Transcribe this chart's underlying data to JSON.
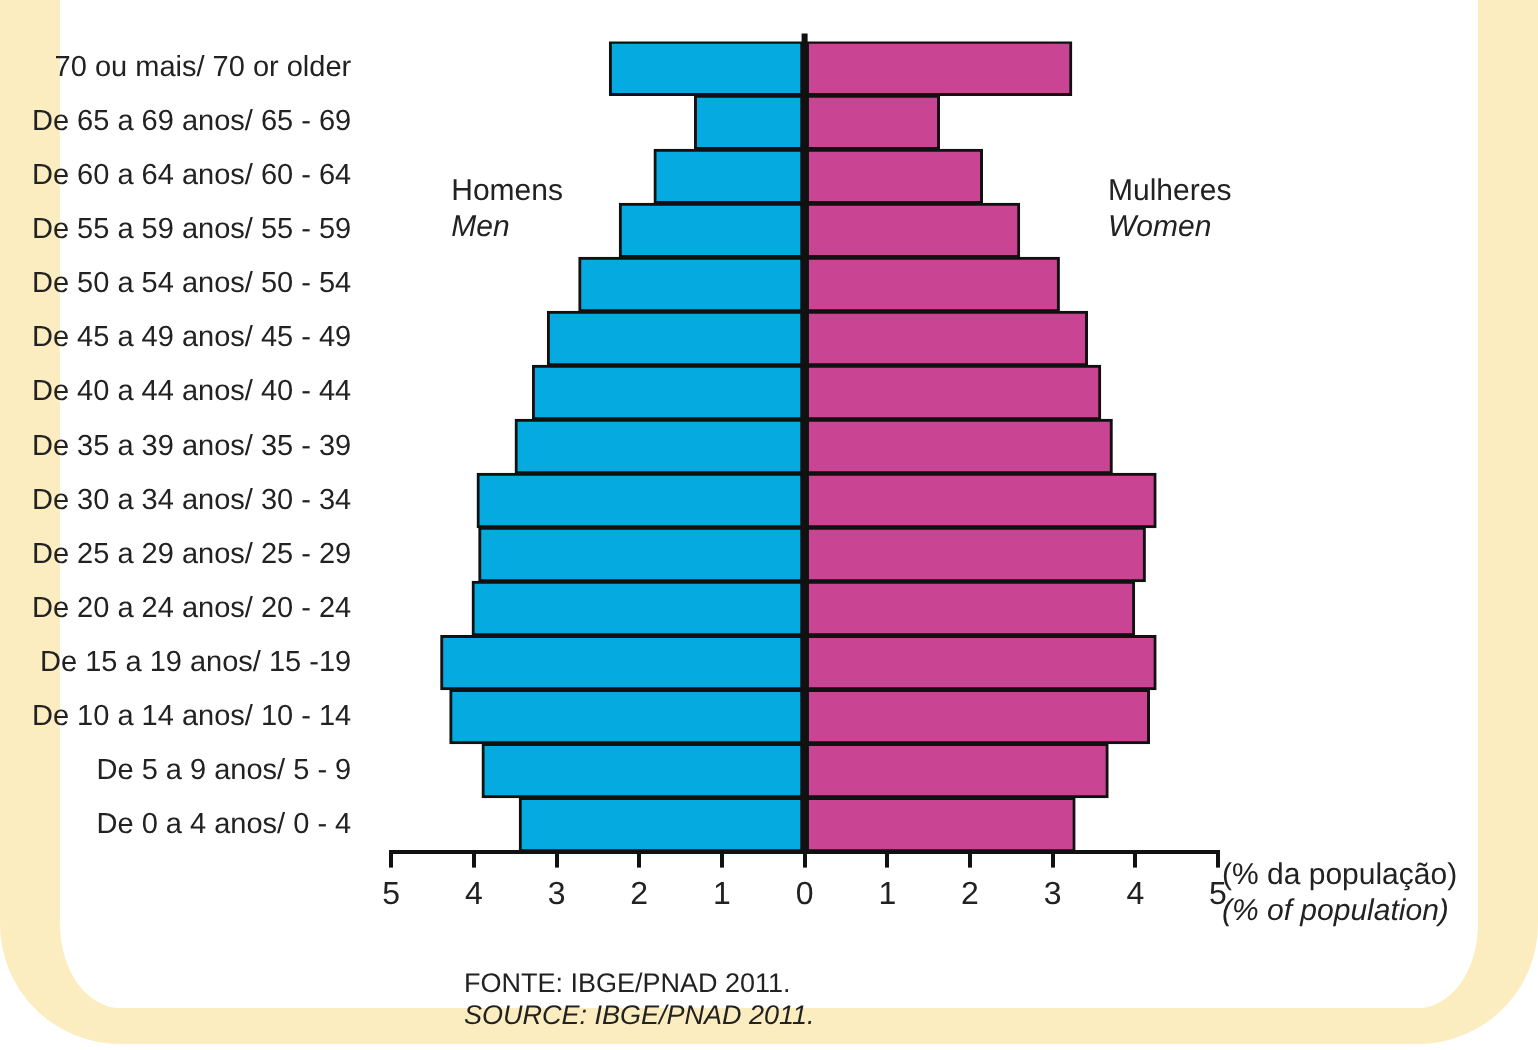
{
  "chart_data": {
    "type": "bar",
    "orientation": "horizontal",
    "stacked": true,
    "categories": [
      "70 ou mais/ 70 or older",
      "De 65 a 69 anos/ 65 - 69",
      "De 60 a 64 anos/ 60 - 64",
      "De 55 a 59 anos/ 55 - 59",
      "De 50 a 54 anos/ 50 - 54",
      "De 45 a 49 anos/ 45 - 49",
      "De 40 a 44 anos/ 40 - 44",
      "De 35 a 39 anos/ 35 - 39",
      "De 30 a 34 anos/ 30 - 34",
      "De 25 a 29 anos/ 25 - 29",
      "De 20 a 24 anos/ 20 - 24",
      "De 15 a 19 anos/ 15 -19",
      "De 10 a 14 anos/ 10 - 14",
      "De 5 a 9 anos/ 5 - 9",
      "De 0 a 4 anos/ 0 - 4"
    ],
    "series": [
      {
        "name": "Homens\nMen",
        "color": "#05aae0",
        "values": [
          -2.36,
          -1.33,
          -1.82,
          -2.24,
          -2.73,
          -3.11,
          -3.29,
          -3.5,
          -3.96,
          -3.94,
          -4.02,
          -4.4,
          -4.29,
          -3.9,
          -3.45
        ]
      },
      {
        "name": "Mulheres\nWomen",
        "color": "#c94594",
        "values": [
          3.23,
          1.63,
          2.15,
          2.6,
          3.08,
          3.42,
          3.58,
          3.72,
          4.25,
          4.12,
          3.99,
          4.25,
          4.17,
          3.67,
          3.27
        ]
      }
    ],
    "xlim": [
      -5,
      5
    ],
    "xticks": [
      {
        "value": -5,
        "label": "5"
      },
      {
        "value": -4,
        "label": "4"
      },
      {
        "value": -3,
        "label": "3"
      },
      {
        "value": -2,
        "label": "2"
      },
      {
        "value": -1,
        "label": "1"
      },
      0,
      1,
      2,
      3,
      4,
      5
    ],
    "xlabel": "(% da população)\n(% of population)",
    "annotations": [
      "FONTE: IBGE/PNAD 2011.\nSOURCE: IBGE/PNAD 2011."
    ],
    "ref_lines": [
      {
        "axis": "x",
        "value": 0,
        "color": "#111111"
      }
    ],
    "grid": false,
    "legend": false
  }
}
